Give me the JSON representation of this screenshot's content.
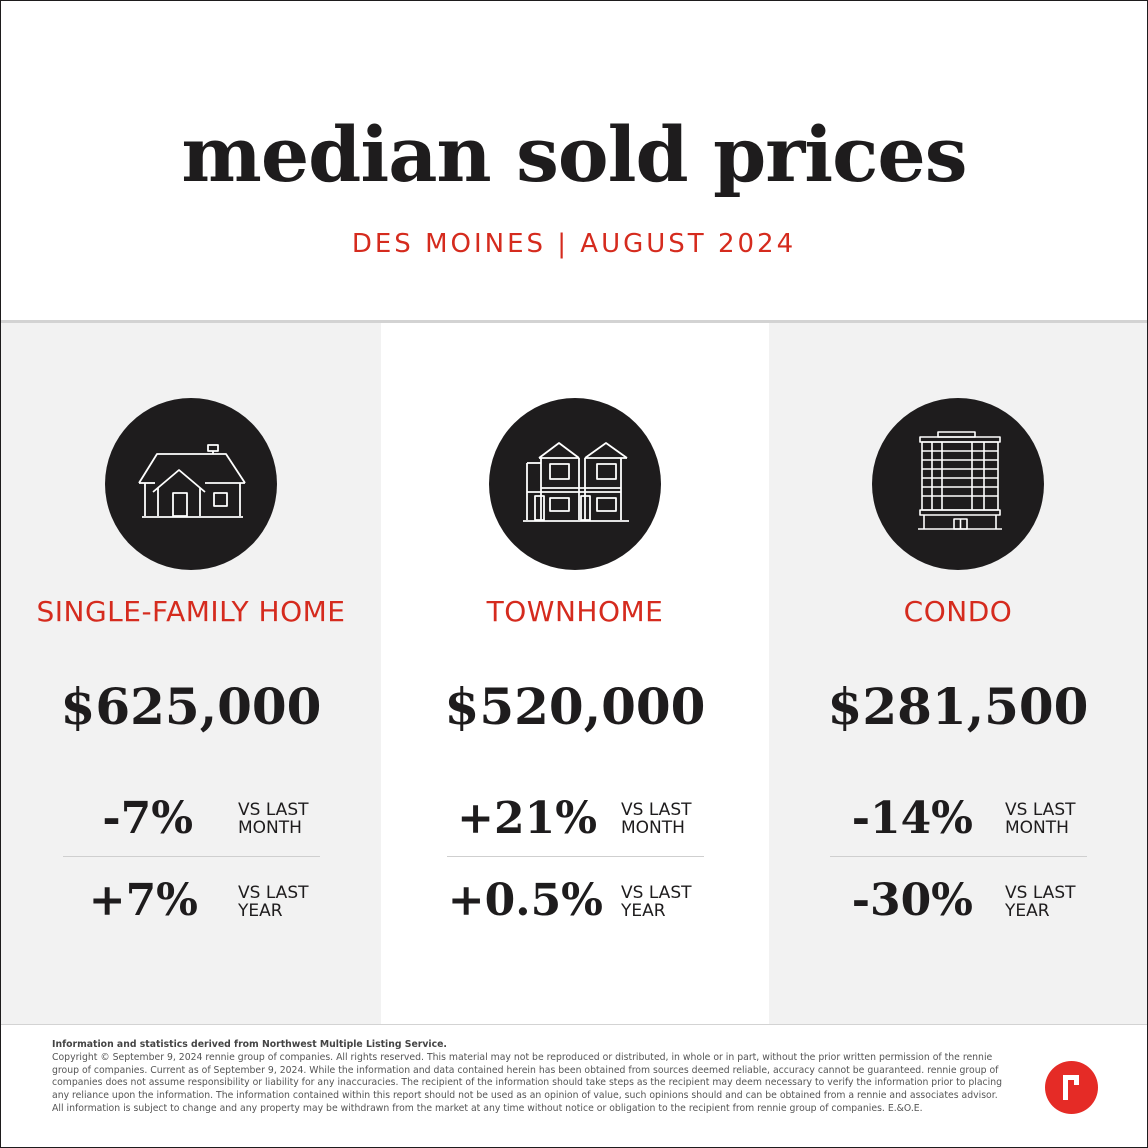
{
  "header": {
    "title": "median sold prices",
    "subtitle": "DES MOINES | AUGUST 2024"
  },
  "categories": [
    {
      "icon": "house-icon",
      "label": "SINGLE-FAMILY HOME",
      "price": "$625,000",
      "month_change": "-7%",
      "month_label": "VS LAST\nMONTH",
      "year_change": "+7%",
      "year_label": "VS LAST\nYEAR"
    },
    {
      "icon": "townhome-icon",
      "label": "TOWNHOME",
      "price": "$520,000",
      "month_change": "+21%",
      "month_label": "VS LAST\nMONTH",
      "year_change": "+0.5%",
      "year_label": "VS LAST\nYEAR"
    },
    {
      "icon": "condo-building-icon",
      "label": "CONDO",
      "price": "$281,500",
      "month_change": "-14%",
      "month_label": "VS LAST\nMONTH",
      "year_change": "-30%",
      "year_label": "VS LAST\nYEAR"
    }
  ],
  "footer": {
    "source": "Information and statistics derived from Northwest Multiple Listing Service.",
    "disclaimer": "Copyright © September 9, 2024 rennie group of companies. All rights reserved. This material may not be reproduced or distributed, in whole or in part, without the prior written permission of the rennie group of companies. Current as of September 9, 2024. While the information and data contained herein has been obtained from sources deemed reliable, accuracy cannot be guaranteed. rennie group of companies does not assume responsibility or liability for any inaccuracies. The recipient of the information should take steps as the recipient may deem necessary to verify the information prior to placing any reliance upon the information. The information contained within this report should not be used as an opinion of value, such opinions should and can be obtained from a rennie and associates advisor. All information is subject to change and any property may be withdrawn from the market at any time without notice or obligation to the recipient from rennie group of companies. E.&O.E."
  },
  "colors": {
    "accent": "#d52b1e",
    "dark": "#1e1c1d",
    "panel": "#f2f2f2",
    "logo": "#e52b26"
  }
}
